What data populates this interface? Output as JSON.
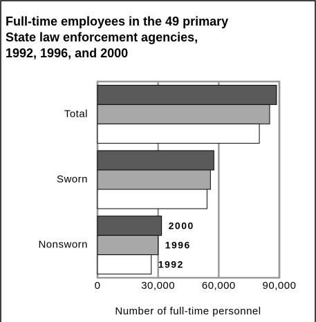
{
  "chart_data": {
    "type": "hbar",
    "title": [
      "Full-time employees in the 49 primary",
      "State law enforcement agencies,",
      "1992, 1996, and 2000"
    ],
    "x_label": "Number of full-time personnel",
    "categories": [
      "Total",
      "Sworn",
      "Nonsworn"
    ],
    "series": [
      {
        "name": "2000",
        "color": "#5a5a5a",
        "values": [
          88600,
          57600,
          31700
        ]
      },
      {
        "name": "1996",
        "color": "#a8a8a8",
        "values": [
          85200,
          55900,
          30000
        ]
      },
      {
        "name": "1992",
        "color": "#ffffff",
        "values": [
          80100,
          54200,
          26600
        ]
      }
    ],
    "xlim": [
      0,
      90000
    ],
    "xticks": [
      0,
      {
        "value": 30000,
        "label": "30,000"
      },
      {
        "value": 60000,
        "label": "60,000"
      },
      {
        "value": 90000,
        "label": "90,000"
      }
    ],
    "grid": true
  }
}
